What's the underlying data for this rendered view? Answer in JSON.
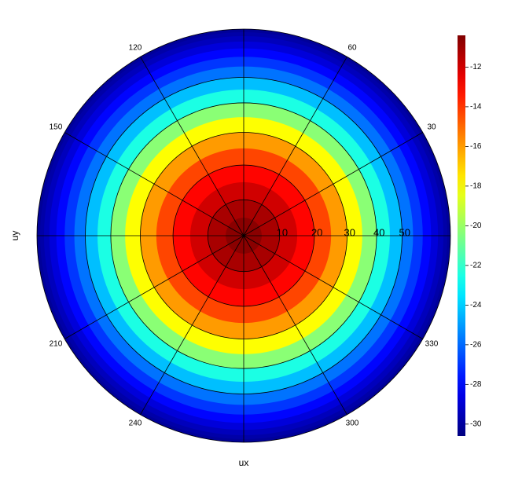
{
  "chart_data": {
    "type": "polar_heatmap",
    "xlabel": "ux",
    "ylabel": "uy",
    "radial_scale": "sin",
    "r_bins": [
      0,
      5,
      10,
      15,
      20,
      25,
      30,
      35,
      40,
      45,
      50,
      55,
      60,
      65,
      70,
      75,
      80,
      85,
      90
    ],
    "values": [
      -10.6,
      -11.2,
      -12.0,
      -13.0,
      -14.3,
      -16.0,
      -18.0,
      -20.3,
      -22.5,
      -24.3,
      -25.8,
      -27.0,
      -28.0,
      -28.8,
      -29.4,
      -29.8,
      -30.1,
      -30.3
    ],
    "rlim": [
      0,
      90
    ],
    "rticks": [
      10,
      20,
      30,
      40,
      50
    ],
    "thetaticks": [
      30,
      60,
      120,
      150,
      210,
      240,
      300,
      330
    ],
    "colormap": "jet",
    "clim": [
      -30.6,
      -10.4
    ],
    "cticks": [
      -12,
      -14,
      -16,
      -18,
      -20,
      -22,
      -24,
      -26,
      -28,
      -30
    ]
  }
}
